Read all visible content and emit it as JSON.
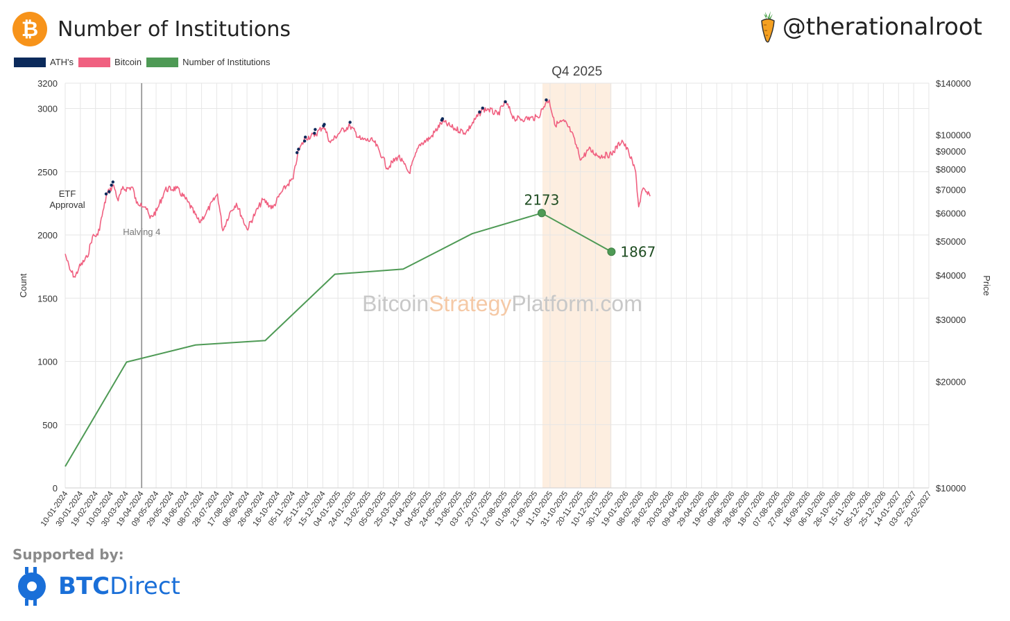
{
  "header": {
    "logo_symbol": "₿",
    "title": "Number of Institutions",
    "handle": "@therationalroot",
    "carrot_icon": "carrot-icon"
  },
  "footer": {
    "supported_by": "Supported by:",
    "sponsor_bold": "BTC",
    "sponsor_rest": "Direct"
  },
  "colors": {
    "ath": "#0b2a5b",
    "bitcoin": "#f06080",
    "institutions": "#4e9a55",
    "q4_band": "#fdeee0",
    "grid": "#e6e6e6",
    "orange": "#f7931a"
  },
  "chart_data": {
    "type": "line",
    "title": "Number of Institutions",
    "legend": [
      {
        "name": "ATH's",
        "color": "#0b2a5b"
      },
      {
        "name": "Bitcoin",
        "color": "#f06080"
      },
      {
        "name": "Number of Institutions",
        "color": "#4e9a55"
      }
    ],
    "ylabel_left": "Count",
    "ylabel_right": "Price",
    "ylim_left": [
      0,
      3200
    ],
    "yticks_left": [
      0,
      500,
      1000,
      1500,
      2000,
      2500,
      3000,
      3200
    ],
    "ylim_right_log": [
      10000,
      140000
    ],
    "yticks_right": [
      10000,
      20000,
      30000,
      40000,
      50000,
      60000,
      70000,
      80000,
      90000,
      100000,
      140000
    ],
    "ytick_labels_right": [
      "$10000",
      "$20000",
      "$30000",
      "$40000",
      "$50000",
      "$60000",
      "$70000",
      "$80000",
      "$90000",
      "$100000",
      "$140000"
    ],
    "x_start": "2024-01-10",
    "x_end": "2027-02-23",
    "x_tick_labels": [
      "10-01-2024",
      "30-01-2024",
      "19-02-2024",
      "10-03-2024",
      "30-03-2024",
      "19-04-2024",
      "09-05-2024",
      "29-05-2024",
      "18-06-2024",
      "08-07-2024",
      "28-07-2024",
      "17-08-2024",
      "06-09-2024",
      "26-09-2024",
      "16-10-2024",
      "05-11-2024",
      "25-11-2024",
      "15-12-2024",
      "04-01-2025",
      "24-01-2025",
      "13-02-2025",
      "05-03-2025",
      "25-03-2025",
      "14-04-2025",
      "04-05-2025",
      "24-05-2025",
      "13-06-2025",
      "03-07-2025",
      "23-07-2025",
      "12-08-2025",
      "01-09-2025",
      "21-09-2025",
      "11-10-2025",
      "31-10-2025",
      "20-11-2025",
      "10-12-2025",
      "30-12-2025",
      "19-01-2026",
      "08-02-2026",
      "28-02-2026",
      "20-03-2026",
      "09-04-2026",
      "29-04-2026",
      "19-05-2026",
      "08-06-2026",
      "28-06-2026",
      "18-07-2026",
      "07-08-2026",
      "27-08-2026",
      "16-09-2026",
      "06-10-2026",
      "26-10-2026",
      "15-11-2026",
      "05-12-2026",
      "25-12-2026",
      "14-01-2027",
      "03-02-2027",
      "23-02-2027"
    ],
    "series": [
      {
        "name": "Number of Institutions",
        "dates": [
          "2024-01-10",
          "2024-03-31",
          "2024-06-30",
          "2024-09-30",
          "2024-12-31",
          "2025-03-31",
          "2025-06-30",
          "2025-09-30",
          "2025-12-31"
        ],
        "values": [
          170,
          995,
          1130,
          1165,
          1690,
          1730,
          2010,
          2173,
          1867
        ]
      },
      {
        "name": "Bitcoin",
        "dates": [
          "2024-01-10",
          "2024-01-16",
          "2024-01-23",
          "2024-01-28",
          "2024-02-08",
          "2024-02-15",
          "2024-02-22",
          "2024-03-01",
          "2024-03-05",
          "2024-03-14",
          "2024-03-20",
          "2024-03-25",
          "2024-04-08",
          "2024-04-13",
          "2024-04-19",
          "2024-04-25",
          "2024-05-01",
          "2024-05-10",
          "2024-05-21",
          "2024-06-05",
          "2024-06-20",
          "2024-07-05",
          "2024-07-14",
          "2024-07-29",
          "2024-08-05",
          "2024-08-14",
          "2024-08-23",
          "2024-09-06",
          "2024-09-17",
          "2024-09-27",
          "2024-10-10",
          "2024-10-20",
          "2024-10-30",
          "2024-11-06",
          "2024-11-12",
          "2024-11-22",
          "2024-12-05",
          "2024-12-16",
          "2024-12-25",
          "2025-01-07",
          "2025-01-20",
          "2025-02-03",
          "2025-02-20",
          "2025-03-04",
          "2025-03-10",
          "2025-03-25",
          "2025-04-08",
          "2025-04-22",
          "2025-05-06",
          "2025-05-22",
          "2025-06-05",
          "2025-06-22",
          "2025-07-14",
          "2025-07-22",
          "2025-08-03",
          "2025-08-13",
          "2025-08-25",
          "2025-09-08",
          "2025-09-25",
          "2025-10-06",
          "2025-10-10",
          "2025-10-17",
          "2025-10-30",
          "2025-11-08",
          "2025-11-21",
          "2025-12-01",
          "2025-12-15",
          "2025-12-31",
          "2026-01-14",
          "2026-01-23",
          "2026-02-01",
          "2026-02-05",
          "2026-02-10",
          "2026-02-20"
        ],
        "values": [
          46000,
          41500,
          39500,
          42000,
          45000,
          51500,
          52000,
          62000,
          68000,
          72000,
          65000,
          70000,
          71000,
          64000,
          64000,
          62500,
          58000,
          61000,
          70000,
          70500,
          64500,
          56500,
          60000,
          68000,
          53500,
          60000,
          64000,
          54000,
          60000,
          65500,
          62000,
          68000,
          72500,
          75000,
          89000,
          98000,
          100000,
          106000,
          95000,
          102000,
          106000,
          97000,
          96000,
          86500,
          80500,
          87000,
          78000,
          94000,
          98000,
          109000,
          104500,
          101500,
          118000,
          118000,
          114000,
          124000,
          111000,
          111000,
          112000,
          124000,
          125500,
          107000,
          109000,
          102000,
          85000,
          91000,
          87000,
          88000,
          96500,
          89000,
          78500,
          62500,
          70000,
          67000
        ]
      },
      {
        "name": "ATH's",
        "dates": [
          "2024-03-04",
          "2024-03-08",
          "2024-03-11",
          "2024-03-13",
          "2024-11-11",
          "2024-11-13",
          "2024-11-21",
          "2024-11-22",
          "2024-12-04",
          "2024-12-05",
          "2024-12-16",
          "2024-12-17",
          "2025-01-20",
          "2025-05-21",
          "2025-05-22",
          "2025-07-10",
          "2025-07-14",
          "2025-08-13",
          "2025-10-06"
        ],
        "values": [
          68000,
          69000,
          72000,
          73500,
          89000,
          91000,
          96000,
          98500,
          101000,
          103500,
          106000,
          107000,
          108500,
          110000,
          111000,
          116000,
          119000,
          124000,
          125500
        ]
      }
    ],
    "annotations": {
      "q4_label": "Q4 2025",
      "q4_start": "2025-10-01",
      "q4_end": "2025-12-31",
      "etf_line1": "ETF",
      "etf_line2": "Approval",
      "halving_label": "Halving 4",
      "halving_date": "2024-04-20",
      "peak_label": "2173",
      "last_label": "1867",
      "watermark_part1": "Bitcoin",
      "watermark_part2": "Strategy",
      "watermark_part3": "Platform.com"
    }
  }
}
